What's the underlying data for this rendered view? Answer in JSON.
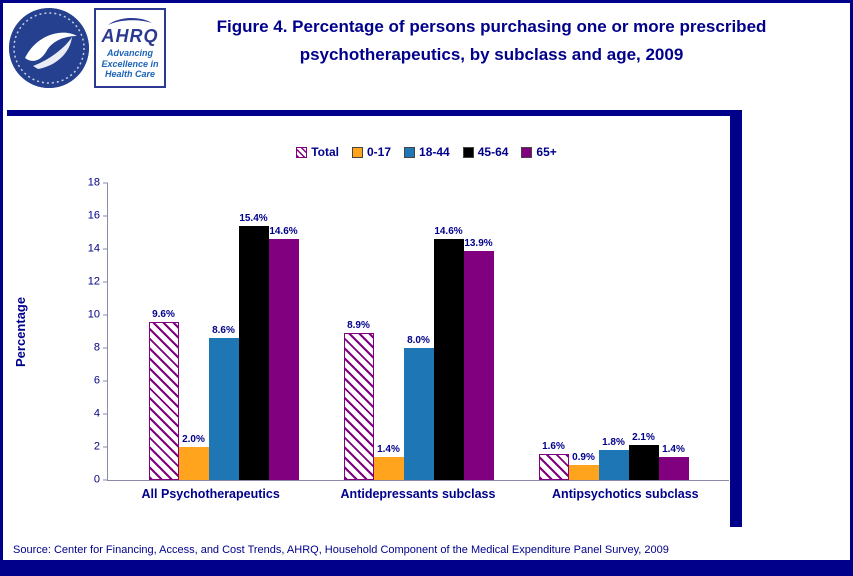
{
  "palette": {
    "navy": "#00008B",
    "logo-blue": "#2B3990",
    "tagline-blue": "#1C63B7",
    "axis-line": "#8a8aa8"
  },
  "header": {
    "title_line1": "Figure 4. Percentage of persons purchasing one or more prescribed",
    "title_line2": "psychotherapeutics, by subclass and age, 2009",
    "hhs_logo_icon": "hhs-eagle-seal",
    "ahrq_logo": {
      "acronym": "AHRQ",
      "tagline_line1": "Advancing",
      "tagline_line2": "Excellence in",
      "tagline_line3": "Health Care"
    }
  },
  "chart_data": {
    "type": "bar",
    "title": "Figure 4. Percentage of persons purchasing one or more prescribed psychotherapeutics, by subclass and age, 2009",
    "xlabel": "",
    "ylabel": "Percentage",
    "ylim": [
      0,
      18
    ],
    "yticks": [
      0,
      2,
      4,
      6,
      8,
      10,
      12,
      14,
      16,
      18
    ],
    "grid": false,
    "legend_position": "top-center",
    "categories": [
      "All Psychotherapeutics",
      "Antidepressants subclass",
      "Antipsychotics subclass"
    ],
    "series": [
      {
        "name": "Total",
        "pattern": "diagonal-hatch",
        "color": "#800080",
        "values": [
          9.6,
          8.9,
          1.6
        ],
        "labels": [
          "9.6%",
          "8.9%",
          "1.6%"
        ]
      },
      {
        "name": "0-17",
        "color": "#FFA41C",
        "values": [
          2.0,
          1.4,
          0.9
        ],
        "labels": [
          "2.0%",
          "1.4%",
          "0.9%"
        ]
      },
      {
        "name": "18-44",
        "color": "#1F76B4",
        "values": [
          8.6,
          8.0,
          1.8
        ],
        "labels": [
          "8.6%",
          "8.0%",
          "1.8%"
        ]
      },
      {
        "name": "45-64",
        "color": "#000000",
        "values": [
          15.4,
          14.6,
          2.1
        ],
        "labels": [
          "15.4%",
          "14.6%",
          "2.1%"
        ]
      },
      {
        "name": "65+",
        "color": "#800080",
        "values": [
          14.6,
          13.9,
          1.4
        ],
        "labels": [
          "14.6%",
          "13.9%",
          "1.4%"
        ]
      }
    ]
  },
  "footer": {
    "source_note": "Source: Center for Financing, Access, and Cost Trends, AHRQ, Household Component of the Medical Expenditure Panel Survey,  2009"
  }
}
